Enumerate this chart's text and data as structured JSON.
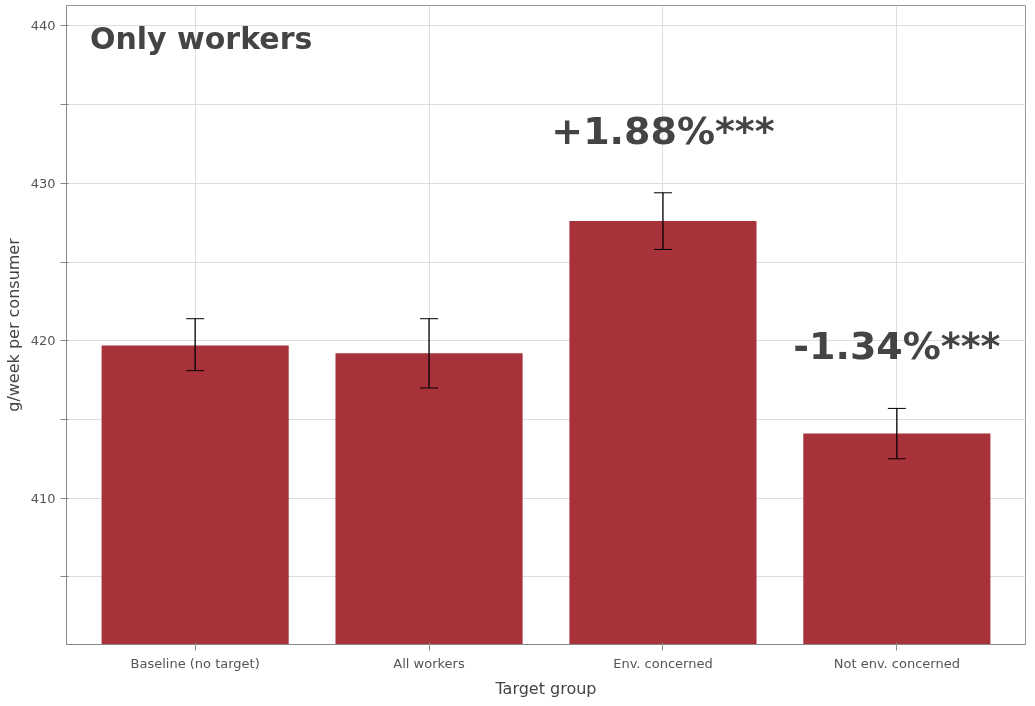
{
  "chart_data": {
    "type": "bar",
    "title": "Only workers",
    "xlabel": "Target group",
    "ylabel": "g/week per consumer",
    "categories": [
      "Baseline (no target)",
      "All workers",
      "Env. concerned",
      "Not env. concerned"
    ],
    "values": [
      419.7,
      419.2,
      427.6,
      414.1
    ],
    "color": "#a8323a",
    "errors": [
      [
        418.1,
        421.4
      ],
      [
        417.0,
        421.4
      ],
      [
        425.8,
        429.4
      ],
      [
        412.5,
        415.7
      ]
    ],
    "ylim": [
      400.7,
      441.3
    ],
    "yticks": [
      {
        "value": 405,
        "label": null
      },
      410,
      {
        "value": 415,
        "label": null
      },
      420,
      {
        "value": 425,
        "label": null
      },
      430,
      {
        "value": 435,
        "label": null
      },
      440
    ],
    "grid": true,
    "annotations": [
      "+1.88%***",
      "-1.34%***"
    ]
  }
}
